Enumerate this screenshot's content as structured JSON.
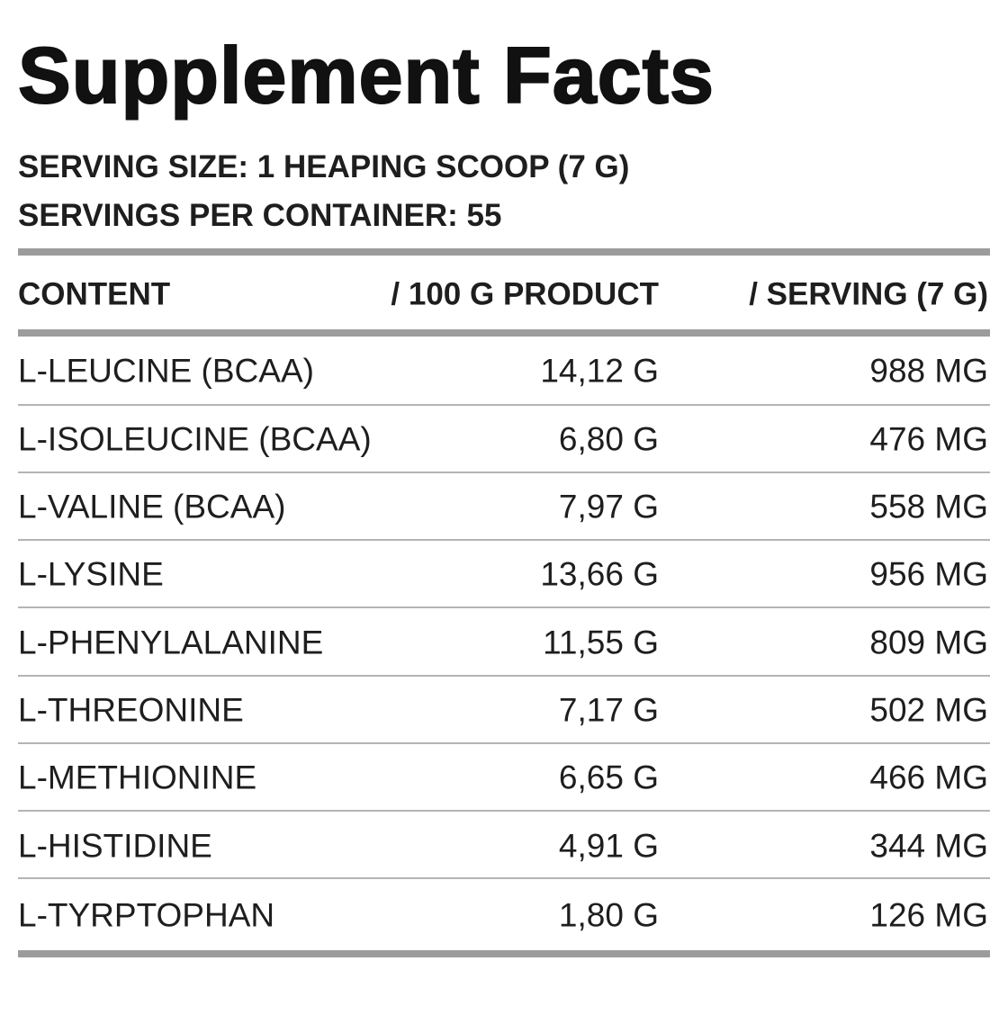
{
  "title": "Supplement Facts",
  "serving_size": "SERVING SIZE: 1 HEAPING SCOOP (7 G)",
  "servings_per_container": "SERVINGS PER CONTAINER: 55",
  "table": {
    "headers": {
      "content": "CONTENT",
      "per_100g": "/ 100 G PRODUCT",
      "per_serving": "/ SERVING (7 G)"
    },
    "rows": [
      {
        "name": "L-LEUCINE (BCAA)",
        "per_100g": "14,12 G",
        "per_serving": "988 MG"
      },
      {
        "name": "L-ISOLEUCINE (BCAA)",
        "per_100g": "6,80 G",
        "per_serving": "476 MG"
      },
      {
        "name": "L-VALINE (BCAA)",
        "per_100g": "7,97 G",
        "per_serving": "558 MG"
      },
      {
        "name": "L-LYSINE",
        "per_100g": "13,66 G",
        "per_serving": "956 MG"
      },
      {
        "name": "L-PHENYLALANINE",
        "per_100g": "11,55 G",
        "per_serving": "809 MG"
      },
      {
        "name": "L-THREONINE",
        "per_100g": "7,17 G",
        "per_serving": "502 MG"
      },
      {
        "name": "L-METHIONINE",
        "per_100g": "6,65 G",
        "per_serving": "466 MG"
      },
      {
        "name": "L-HISTIDINE",
        "per_100g": "4,91 G",
        "per_serving": "344 MG"
      },
      {
        "name": "L-TYRPTOPHAN",
        "per_100g": "1,80 G",
        "per_serving": "126 MG"
      }
    ]
  }
}
